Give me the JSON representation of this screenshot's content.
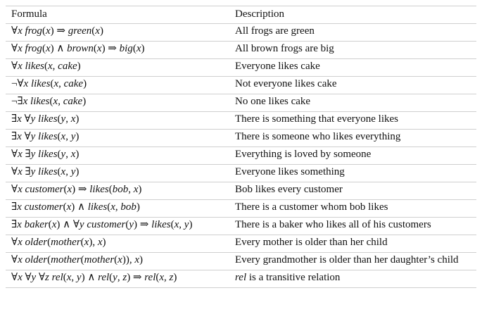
{
  "table": {
    "header": {
      "formula": "Formula",
      "description": "Description"
    },
    "rows": [
      {
        "formula": "∀x frog(x) ⇒ green(x)",
        "description": "All frogs are green"
      },
      {
        "formula": "∀x frog(x) ∧ brown(x) ⇒ big(x)",
        "description": "All brown frogs are big"
      },
      {
        "formula": "∀x likes(x, cake)",
        "description": "Everyone likes cake"
      },
      {
        "formula": "¬∀x likes(x, cake)",
        "description": "Not everyone likes cake"
      },
      {
        "formula": "¬∃x likes(x, cake)",
        "description": "No one likes cake"
      },
      {
        "formula": "∃x ∀y likes(y, x)",
        "description": "There is something that everyone likes"
      },
      {
        "formula": "∃x ∀y likes(x, y)",
        "description": "There is someone who likes everything"
      },
      {
        "formula": "∀x ∃y likes(y, x)",
        "description": "Everything is loved by someone"
      },
      {
        "formula": "∀x ∃y likes(x, y)",
        "description": "Everyone likes something"
      },
      {
        "formula": "∀x customer(x) ⇒ likes(bob, x)",
        "description": "Bob likes every customer"
      },
      {
        "formula": "∃x customer(x) ∧ likes(x, bob)",
        "description": "There is a customer whom bob likes"
      },
      {
        "formula": "∃x baker(x) ∧ ∀y customer(y) ⇒ likes(x, y)",
        "description": "There is a baker who likes all of his customers"
      },
      {
        "formula": "∀x older(mother(x), x)",
        "description": "Every mother is older than her child"
      },
      {
        "formula": "∀x older(mother(mother(x)), x)",
        "description": "Every grandmother is older than her daughter’s child"
      },
      {
        "formula": "∀x ∀y ∀z rel(x, y) ∧ rel(y, z) ⇒ rel(x, z)",
        "description": "rel is a transitive relation"
      }
    ]
  }
}
